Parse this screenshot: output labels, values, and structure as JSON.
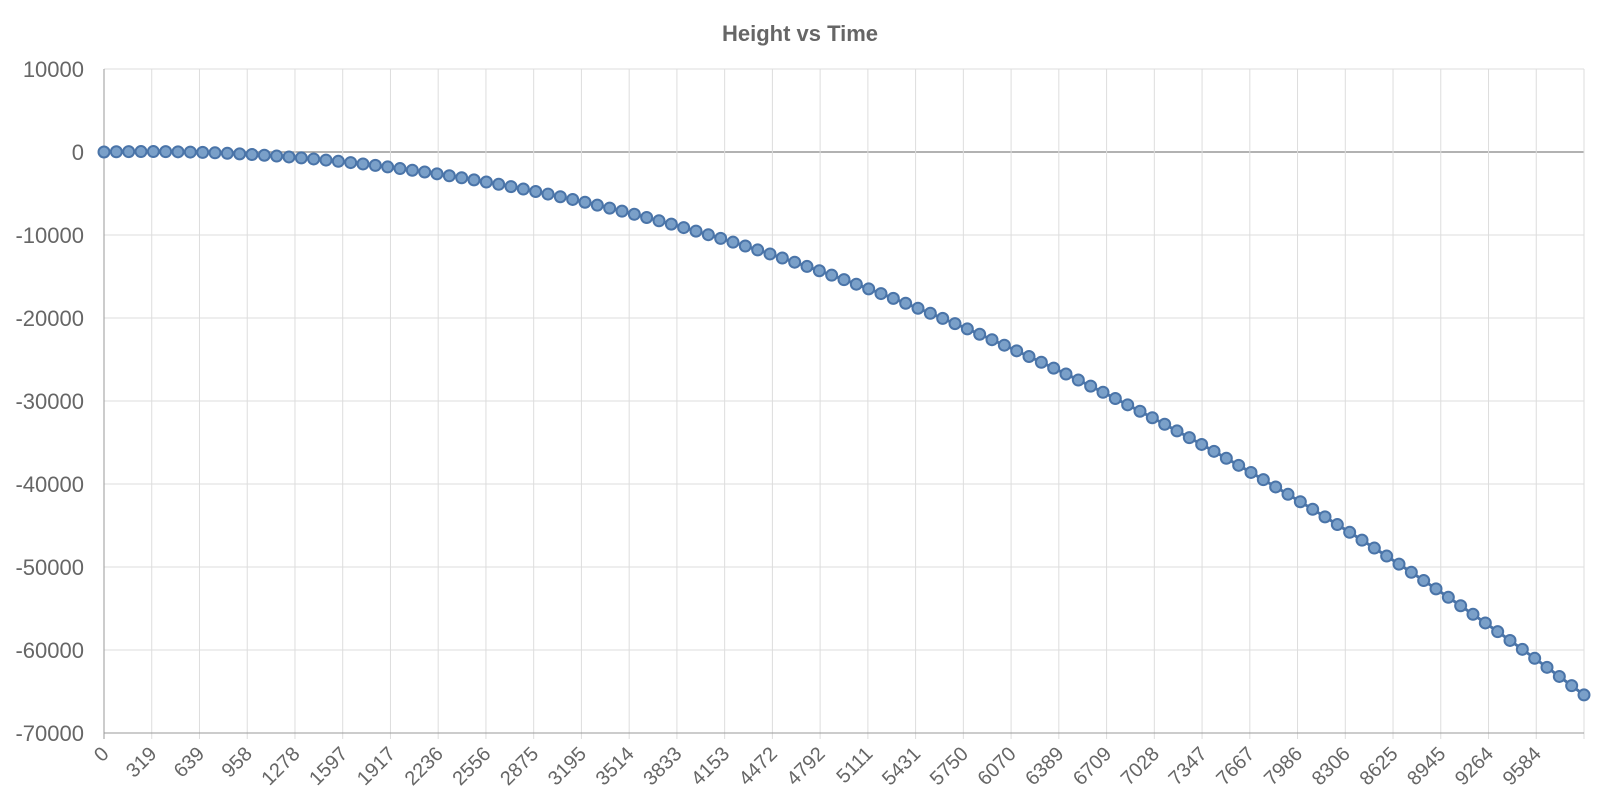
{
  "chart_data": {
    "type": "line",
    "title": "Height vs Time",
    "xlabel": "",
    "ylabel": "",
    "ylim": [
      -70000,
      10000
    ],
    "yticks": [
      10000,
      0,
      -10000,
      -20000,
      -30000,
      -40000,
      -50000,
      -60000,
      -70000
    ],
    "xtick_labels": [
      "0",
      "319",
      "639",
      "958",
      "1278",
      "1597",
      "1917",
      "2236",
      "2556",
      "2875",
      "3195",
      "3514",
      "3833",
      "4153",
      "4472",
      "4792",
      "5111",
      "5431",
      "5750",
      "6070",
      "6389",
      "6709",
      "7028",
      "7347",
      "7667",
      "7986",
      "8306",
      "8625",
      "8945",
      "9264",
      "9584"
    ],
    "grid": true,
    "legend": "none",
    "point_count": 121,
    "series": [
      {
        "x_start": 0,
        "x_end": 9744,
        "model": "quadratic",
        "coefficients": {
          "a": 0,
          "b": 0.4,
          "c": -0.00073
        },
        "color": "#4a74a8",
        "fill_color": "#7aa0c9"
      }
    ],
    "axis_color": "#999999",
    "grid_color": "#dddddd",
    "zero_line_color": "#999999"
  }
}
